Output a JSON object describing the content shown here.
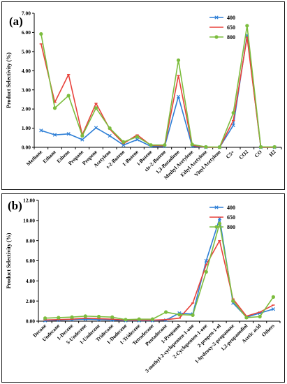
{
  "chart_data": [
    {
      "type": "line",
      "panel_label": "(a)",
      "ylabel": "Product Selectivity (%)",
      "ylim": [
        0,
        7
      ],
      "ytick_labels": [
        "0.00",
        "1.00",
        "2.00",
        "3.00",
        "4.00",
        "5.00",
        "6.00",
        "7.00"
      ],
      "yticks": [
        0,
        1,
        2,
        3,
        4,
        5,
        6,
        7
      ],
      "categories": [
        "Methane",
        "Ethane",
        "Ethene",
        "Propane",
        "Propene",
        "Acetylene",
        "t-2-Butene",
        "1-Butene",
        "i-Butene",
        "cis-2-Butene",
        "1,3-Butadiene",
        "Methyl Acetylene",
        "Ethyl Acetylene",
        "Vinyl Acetylene",
        "C5+",
        "CO2",
        "CO",
        "H2"
      ],
      "legend_position": "top-right",
      "series": [
        {
          "name": "400",
          "color": "#2e7fd6",
          "marker": "x",
          "values": [
            0.88,
            0.65,
            0.7,
            0.4,
            1.02,
            0.6,
            0.12,
            0.4,
            0.05,
            0.05,
            2.65,
            0.05,
            0.0,
            0.0,
            1.15,
            5.85,
            0.0,
            0.0
          ]
        },
        {
          "name": "650",
          "color": "#e8423b",
          "marker": "line",
          "values": [
            5.4,
            2.35,
            3.8,
            0.65,
            2.3,
            0.95,
            0.2,
            0.65,
            0.1,
            0.08,
            3.75,
            0.1,
            0.0,
            0.0,
            1.4,
            5.75,
            0.0,
            0.0
          ]
        },
        {
          "name": "800",
          "color": "#7cbd3e",
          "marker": "circle",
          "values": [
            5.92,
            2.05,
            2.7,
            0.6,
            2.05,
            1.0,
            0.28,
            0.55,
            0.12,
            0.12,
            4.55,
            0.15,
            0.02,
            0.01,
            1.8,
            6.35,
            0.02,
            0.02
          ]
        }
      ]
    },
    {
      "type": "line",
      "panel_label": "(b)",
      "ylabel": "Product Selectivity (%)",
      "ylim": [
        0,
        12
      ],
      "ytick_labels": [
        "0.00",
        "2.00",
        "4.00",
        "6.00",
        "8.00",
        "10.00",
        "12.00"
      ],
      "yticks": [
        0,
        2,
        4,
        6,
        8,
        10,
        12
      ],
      "categories": [
        "Decane",
        "Undecane",
        "1-Decene",
        "5-Undecene",
        "1-Undecene",
        "Tridecane",
        "1-Dodecene",
        "1-Tridecene",
        "Tetradecane",
        "Pentadecane",
        "1-Propanol",
        "3-methyl-2-cyclopenten-1-one",
        "2-Cyclopenten-1-one",
        "2-propen-1-ol",
        "1-hydroxy-2-propanone",
        "1,2-propanediol",
        "Acetic acid",
        "Others"
      ],
      "legend_position": "top-right",
      "series": [
        {
          "name": "400",
          "color": "#2e7fd6",
          "marker": "x",
          "values": [
            0.05,
            0.1,
            0.15,
            0.2,
            0.15,
            0.12,
            0.05,
            0.05,
            0.05,
            0.1,
            0.8,
            0.7,
            6.0,
            10.2,
            1.8,
            0.4,
            0.8,
            1.2
          ]
        },
        {
          "name": "650",
          "color": "#e8423b",
          "marker": "line",
          "values": [
            0.12,
            0.15,
            0.2,
            0.3,
            0.25,
            0.2,
            0.1,
            0.1,
            0.1,
            0.15,
            0.3,
            1.8,
            5.6,
            8.0,
            2.2,
            0.5,
            0.9,
            1.6
          ]
        },
        {
          "name": "800",
          "color": "#7cbd3e",
          "marker": "circle",
          "values": [
            0.3,
            0.35,
            0.4,
            0.5,
            0.45,
            0.4,
            0.15,
            0.2,
            0.2,
            0.9,
            0.65,
            0.6,
            4.9,
            9.7,
            2.0,
            0.35,
            0.45,
            2.4
          ]
        }
      ]
    }
  ]
}
